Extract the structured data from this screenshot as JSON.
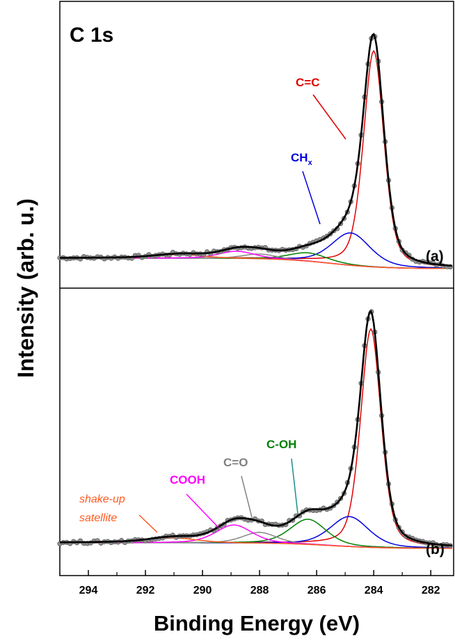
{
  "chart_data": {
    "type": "line",
    "title": "C 1s",
    "xlabel": "Binding Energy (eV)",
    "ylabel": "Intensity (arb. u.)",
    "x_ticks": [
      294,
      292,
      290,
      288,
      286,
      284,
      282
    ],
    "xlim": [
      295.0,
      281.2
    ],
    "x_reversed": true,
    "grid": false,
    "panels": [
      {
        "label": "(a)",
        "components": [
          {
            "name": "C=C",
            "color": "#e00000",
            "center": 284.0,
            "height": 0.9,
            "width": 0.85
          },
          {
            "name": "CHx",
            "color": "#0000e0",
            "center": 284.8,
            "height": 0.135,
            "width": 1.6
          },
          {
            "name": "C-OH",
            "color": "#008000",
            "center": 286.3,
            "height": 0.035,
            "width": 1.6
          },
          {
            "name": "C=O",
            "color": "#888888",
            "center": 288.0,
            "height": 0.02,
            "width": 1.4
          },
          {
            "name": "COOH",
            "color": "#ff00ff",
            "center": 288.8,
            "height": 0.03,
            "width": 1.5
          },
          {
            "name": "shake-up satellite",
            "color": "#ff5a1f",
            "center": 290.8,
            "height": 0.015,
            "width": 2.0
          }
        ]
      },
      {
        "label": "(b)",
        "components": [
          {
            "name": "C=C",
            "color": "#e00000",
            "center": 284.1,
            "height": 0.91,
            "width": 0.85
          },
          {
            "name": "CHx",
            "color": "#0000e0",
            "center": 284.85,
            "height": 0.125,
            "width": 1.6
          },
          {
            "name": "C-OH",
            "color": "#008000",
            "center": 286.3,
            "height": 0.105,
            "width": 1.5
          },
          {
            "name": "C=O",
            "color": "#888888",
            "center": 288.0,
            "height": 0.045,
            "width": 1.4
          },
          {
            "name": "COOH",
            "color": "#ff00ff",
            "center": 288.9,
            "height": 0.075,
            "width": 1.5
          },
          {
            "name": "shake-up satellite",
            "color": "#ff5a1f",
            "center": 291.0,
            "height": 0.02,
            "width": 2.0
          }
        ]
      }
    ]
  },
  "annotations": {
    "top": {
      "cc": "C=C",
      "ch_main": "CH",
      "ch_sub": "x"
    },
    "bottom": {
      "coh": "C-OH",
      "co": "C=O",
      "cooh": "COOH",
      "shake1": "shake-up",
      "shake2": "satellite"
    }
  },
  "colors": {
    "fit": "#000000",
    "data_points": "#8c8c8c",
    "background": "#808080"
  }
}
